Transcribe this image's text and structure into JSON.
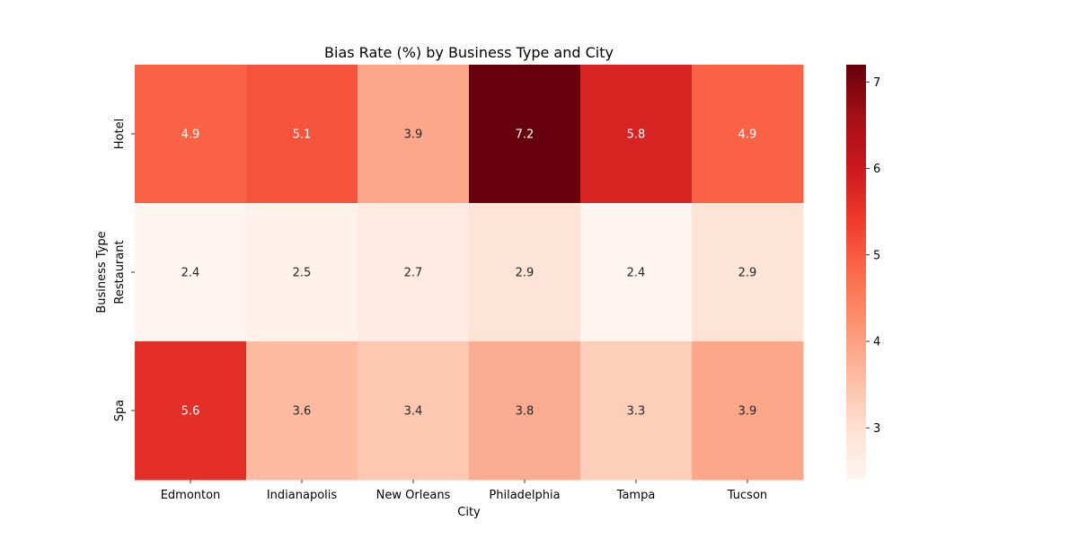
{
  "chart_data": {
    "type": "heatmap",
    "title": "Bias Rate (%) by Business Type and City",
    "xlabel": "City",
    "ylabel": "Business Type",
    "x_categories": [
      "Edmonton",
      "Indianapolis",
      "New Orleans",
      "Philadelphia",
      "Tampa",
      "Tucson"
    ],
    "y_categories": [
      "Hotel",
      "Restaurant",
      "Spa"
    ],
    "values": [
      [
        4.9,
        5.1,
        3.9,
        7.2,
        5.8,
        4.9
      ],
      [
        2.4,
        2.5,
        2.7,
        2.9,
        2.4,
        2.9
      ],
      [
        5.6,
        3.6,
        3.4,
        3.8,
        3.3,
        3.9
      ]
    ],
    "colorbar": {
      "vmin": 2.4,
      "vmax": 7.2,
      "ticks": [
        "3",
        "4",
        "5",
        "6",
        "7"
      ],
      "colormap": "Reds"
    }
  }
}
